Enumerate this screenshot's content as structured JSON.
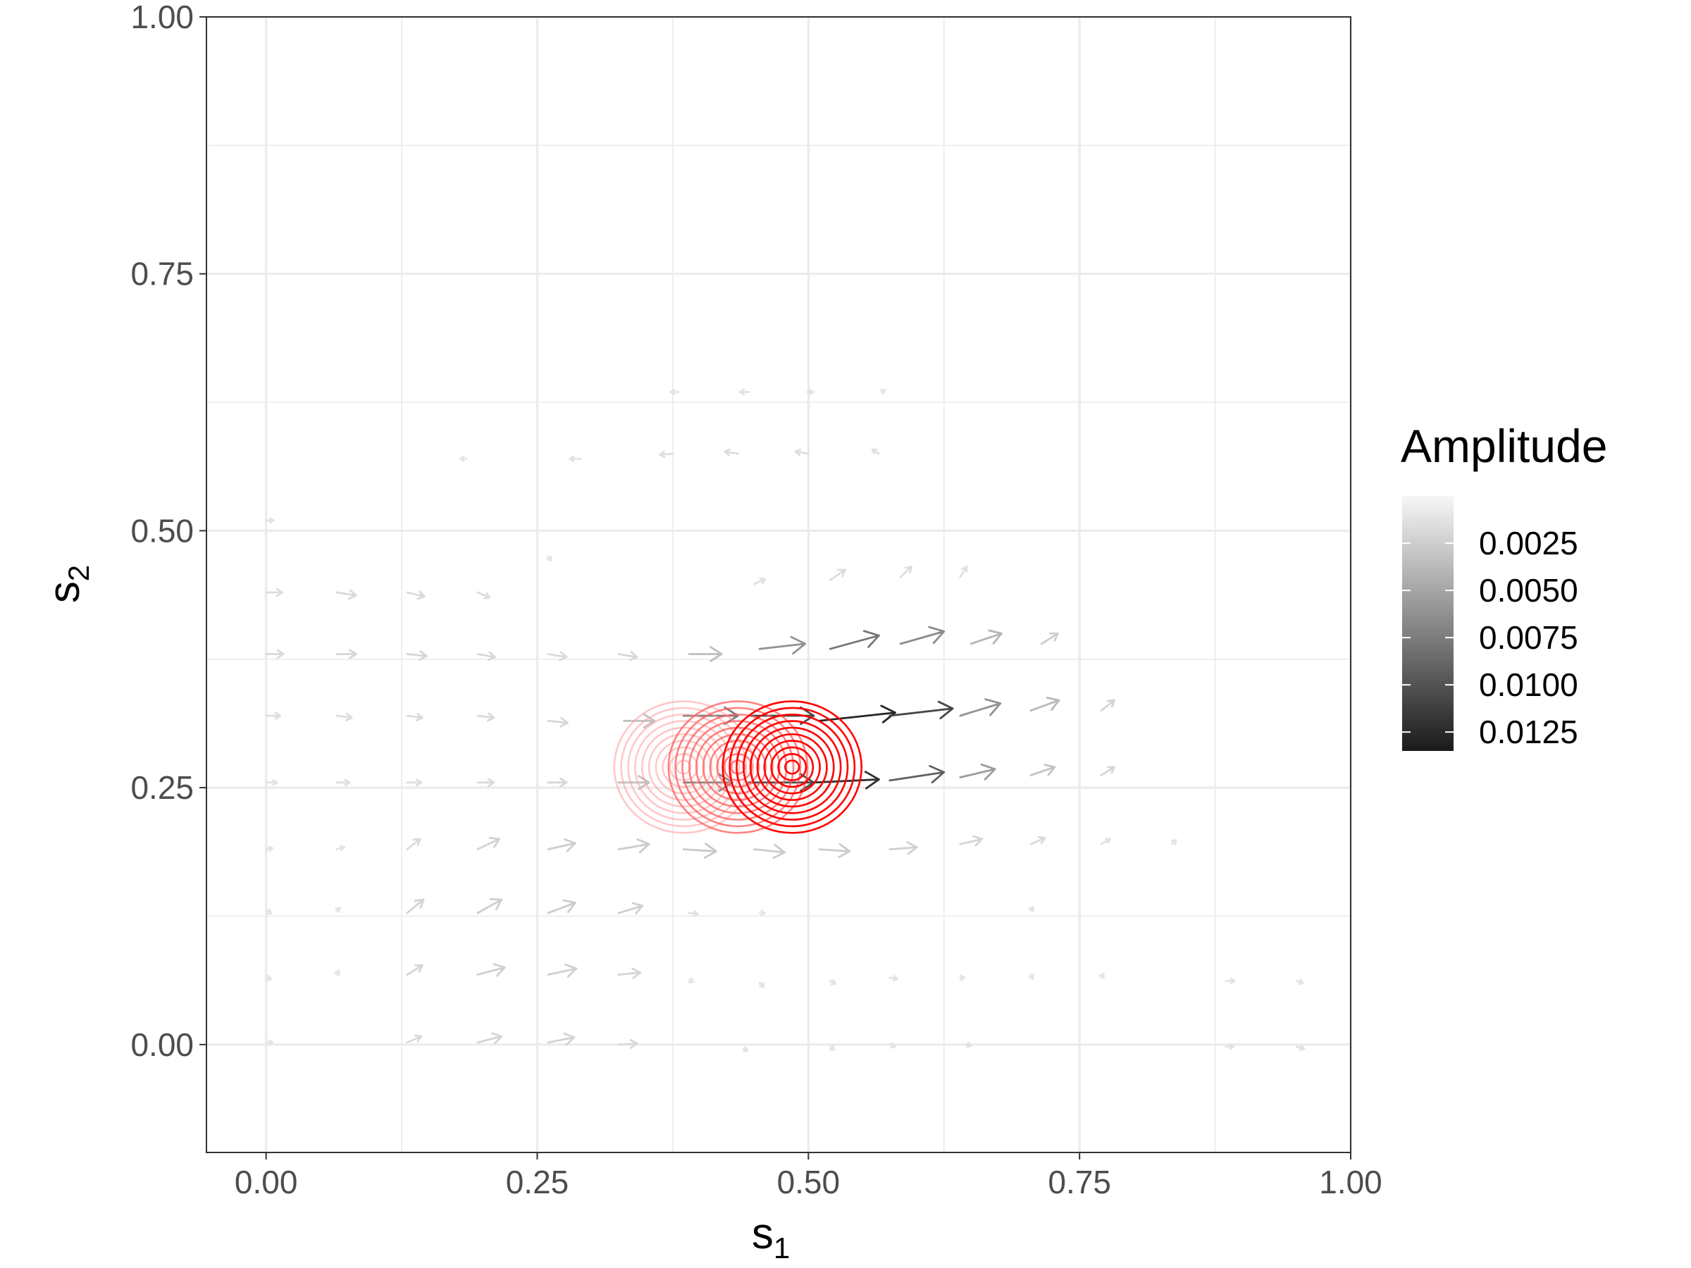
{
  "chart_data": {
    "type": "vector-field-contour",
    "xlabel": "s",
    "xlabel_subscript": "1",
    "ylabel": "s",
    "ylabel_subscript": "2",
    "xlim": [
      -0.055,
      1.0
    ],
    "ylim": [
      -0.105,
      1.0
    ],
    "x_ticks": [
      0.0,
      0.25,
      0.5,
      0.75,
      1.0
    ],
    "x_tick_labels": [
      "0.00",
      "0.25",
      "0.50",
      "0.75",
      "1.00"
    ],
    "y_ticks": [
      0.0,
      0.25,
      0.5,
      0.75,
      1.0
    ],
    "y_tick_labels": [
      "0.00",
      "0.25",
      "0.50",
      "0.75",
      "1.00"
    ],
    "grid": true,
    "legend": {
      "title": "Amplitude",
      "placement": "right",
      "colorbar_range": [
        0.0,
        0.0135
      ],
      "breaks": [
        0.0025,
        0.005,
        0.0075,
        0.01,
        0.0125
      ],
      "labels": [
        "0.0025",
        "0.0050",
        "0.0075",
        "0.0100",
        "0.0125"
      ],
      "color_low": "#f7f7f7",
      "color_high": "#1a1a1a"
    },
    "contours": [
      {
        "center": [
          0.385,
          0.27
        ],
        "radius": 0.064,
        "levels": 10,
        "color": "#ff9c9c",
        "opacity": 0.55
      },
      {
        "center": [
          0.435,
          0.27
        ],
        "radius": 0.064,
        "levels": 10,
        "color": "#ff5a5a",
        "opacity": 0.75
      },
      {
        "center": [
          0.485,
          0.27
        ],
        "radius": 0.064,
        "levels": 10,
        "color": "#ff0000",
        "opacity": 1.0
      }
    ],
    "vectors": [
      {
        "x": 0.0,
        "y": 0.44,
        "dx": 0.015,
        "dy": 0.0,
        "amp": 0.0015
      },
      {
        "x": 0.065,
        "y": 0.44,
        "dx": 0.018,
        "dy": -0.003,
        "amp": 0.0018
      },
      {
        "x": 0.13,
        "y": 0.44,
        "dx": 0.016,
        "dy": -0.004,
        "amp": 0.0018
      },
      {
        "x": 0.195,
        "y": 0.44,
        "dx": 0.011,
        "dy": -0.005,
        "amp": 0.0016
      },
      {
        "x": 0.0,
        "y": 0.38,
        "dx": 0.016,
        "dy": 0.0,
        "amp": 0.0018
      },
      {
        "x": 0.065,
        "y": 0.38,
        "dx": 0.018,
        "dy": 0.0,
        "amp": 0.002
      },
      {
        "x": 0.13,
        "y": 0.38,
        "dx": 0.018,
        "dy": -0.002,
        "amp": 0.002
      },
      {
        "x": 0.195,
        "y": 0.38,
        "dx": 0.016,
        "dy": -0.003,
        "amp": 0.0019
      },
      {
        "x": 0.26,
        "y": 0.38,
        "dx": 0.017,
        "dy": -0.003,
        "amp": 0.0018
      },
      {
        "x": 0.325,
        "y": 0.38,
        "dx": 0.017,
        "dy": -0.003,
        "amp": 0.0019
      },
      {
        "x": 0.39,
        "y": 0.38,
        "dx": 0.03,
        "dy": 0.0,
        "amp": 0.0035
      },
      {
        "x": 0.455,
        "y": 0.385,
        "dx": 0.042,
        "dy": 0.005,
        "amp": 0.0062
      },
      {
        "x": 0.52,
        "y": 0.385,
        "dx": 0.045,
        "dy": 0.013,
        "amp": 0.0078
      },
      {
        "x": 0.585,
        "y": 0.39,
        "dx": 0.04,
        "dy": 0.012,
        "amp": 0.0066
      },
      {
        "x": 0.65,
        "y": 0.39,
        "dx": 0.028,
        "dy": 0.01,
        "amp": 0.004
      },
      {
        "x": 0.715,
        "y": 0.39,
        "dx": 0.015,
        "dy": 0.01,
        "amp": 0.0025
      },
      {
        "x": 0.0,
        "y": 0.32,
        "dx": 0.013,
        "dy": 0.0,
        "amp": 0.0015
      },
      {
        "x": 0.065,
        "y": 0.32,
        "dx": 0.014,
        "dy": -0.002,
        "amp": 0.0016
      },
      {
        "x": 0.13,
        "y": 0.32,
        "dx": 0.014,
        "dy": -0.002,
        "amp": 0.0017
      },
      {
        "x": 0.195,
        "y": 0.32,
        "dx": 0.015,
        "dy": -0.002,
        "amp": 0.0019
      },
      {
        "x": 0.26,
        "y": 0.315,
        "dx": 0.018,
        "dy": -0.002,
        "amp": 0.002
      },
      {
        "x": 0.33,
        "y": 0.315,
        "dx": 0.028,
        "dy": 0.0,
        "amp": 0.0033
      },
      {
        "x": 0.385,
        "y": 0.32,
        "dx": 0.05,
        "dy": 0.0,
        "amp": 0.0075
      },
      {
        "x": 0.445,
        "y": 0.32,
        "dx": 0.06,
        "dy": 0.0,
        "amp": 0.0105
      },
      {
        "x": 0.51,
        "y": 0.315,
        "dx": 0.07,
        "dy": 0.008,
        "amp": 0.0128
      },
      {
        "x": 0.575,
        "y": 0.32,
        "dx": 0.058,
        "dy": 0.007,
        "amp": 0.0108
      },
      {
        "x": 0.64,
        "y": 0.32,
        "dx": 0.037,
        "dy": 0.012,
        "amp": 0.0062
      },
      {
        "x": 0.705,
        "y": 0.325,
        "dx": 0.026,
        "dy": 0.01,
        "amp": 0.0037
      },
      {
        "x": 0.77,
        "y": 0.325,
        "dx": 0.012,
        "dy": 0.01,
        "amp": 0.0022
      },
      {
        "x": 0.0,
        "y": 0.255,
        "dx": 0.01,
        "dy": 0.0,
        "amp": 0.0013
      },
      {
        "x": 0.065,
        "y": 0.255,
        "dx": 0.012,
        "dy": 0.0,
        "amp": 0.0014
      },
      {
        "x": 0.13,
        "y": 0.255,
        "dx": 0.013,
        "dy": 0.0,
        "amp": 0.0015
      },
      {
        "x": 0.195,
        "y": 0.255,
        "dx": 0.015,
        "dy": 0.0,
        "amp": 0.0017
      },
      {
        "x": 0.26,
        "y": 0.255,
        "dx": 0.017,
        "dy": 0.0,
        "amp": 0.0019
      },
      {
        "x": 0.325,
        "y": 0.255,
        "dx": 0.028,
        "dy": 0.0,
        "amp": 0.0032
      },
      {
        "x": 0.385,
        "y": 0.255,
        "dx": 0.045,
        "dy": 0.0,
        "amp": 0.0068
      },
      {
        "x": 0.445,
        "y": 0.255,
        "dx": 0.06,
        "dy": 0.0,
        "amp": 0.0103
      },
      {
        "x": 0.505,
        "y": 0.255,
        "dx": 0.06,
        "dy": 0.003,
        "amp": 0.0121
      },
      {
        "x": 0.575,
        "y": 0.257,
        "dx": 0.05,
        "dy": 0.008,
        "amp": 0.0092
      },
      {
        "x": 0.64,
        "y": 0.26,
        "dx": 0.032,
        "dy": 0.008,
        "amp": 0.0055
      },
      {
        "x": 0.705,
        "y": 0.262,
        "dx": 0.022,
        "dy": 0.008,
        "amp": 0.0032
      },
      {
        "x": 0.77,
        "y": 0.262,
        "dx": 0.012,
        "dy": 0.008,
        "amp": 0.0021
      },
      {
        "x": 0.0,
        "y": 0.19,
        "dx": 0.006,
        "dy": 0.001,
        "amp": 0.0011
      },
      {
        "x": 0.065,
        "y": 0.19,
        "dx": 0.007,
        "dy": 0.002,
        "amp": 0.0012
      },
      {
        "x": 0.13,
        "y": 0.19,
        "dx": 0.012,
        "dy": 0.01,
        "amp": 0.0017
      },
      {
        "x": 0.195,
        "y": 0.19,
        "dx": 0.02,
        "dy": 0.01,
        "amp": 0.0022
      },
      {
        "x": 0.26,
        "y": 0.19,
        "dx": 0.025,
        "dy": 0.006,
        "amp": 0.0025
      },
      {
        "x": 0.325,
        "y": 0.19,
        "dx": 0.028,
        "dy": 0.005,
        "amp": 0.0027
      },
      {
        "x": 0.385,
        "y": 0.19,
        "dx": 0.03,
        "dy": -0.002,
        "amp": 0.0028
      },
      {
        "x": 0.45,
        "y": 0.19,
        "dx": 0.028,
        "dy": -0.003,
        "amp": 0.0027
      },
      {
        "x": 0.51,
        "y": 0.19,
        "dx": 0.028,
        "dy": -0.002,
        "amp": 0.0026
      },
      {
        "x": 0.575,
        "y": 0.19,
        "dx": 0.025,
        "dy": 0.002,
        "amp": 0.0024
      },
      {
        "x": 0.64,
        "y": 0.195,
        "dx": 0.02,
        "dy": 0.005,
        "amp": 0.0021
      },
      {
        "x": 0.705,
        "y": 0.195,
        "dx": 0.013,
        "dy": 0.006,
        "amp": 0.0018
      },
      {
        "x": 0.77,
        "y": 0.195,
        "dx": 0.008,
        "dy": 0.005,
        "amp": 0.0014
      },
      {
        "x": 0.835,
        "y": 0.195,
        "dx": 0.004,
        "dy": 0.004,
        "amp": 0.0012
      },
      {
        "x": 0.0,
        "y": 0.13,
        "dx": 0.005,
        "dy": -0.002,
        "amp": 0.0012
      },
      {
        "x": 0.065,
        "y": 0.13,
        "dx": 0.003,
        "dy": 0.003,
        "amp": 0.0011
      },
      {
        "x": 0.13,
        "y": 0.128,
        "dx": 0.015,
        "dy": 0.013,
        "amp": 0.0022
      },
      {
        "x": 0.195,
        "y": 0.128,
        "dx": 0.022,
        "dy": 0.013,
        "amp": 0.0025
      },
      {
        "x": 0.26,
        "y": 0.128,
        "dx": 0.025,
        "dy": 0.01,
        "amp": 0.0026
      },
      {
        "x": 0.325,
        "y": 0.128,
        "dx": 0.022,
        "dy": 0.007,
        "amp": 0.0024
      },
      {
        "x": 0.39,
        "y": 0.128,
        "dx": 0.008,
        "dy": -0.001,
        "amp": 0.0013
      },
      {
        "x": 0.455,
        "y": 0.128,
        "dx": 0.005,
        "dy": 0.0,
        "amp": 0.0011
      },
      {
        "x": 0.705,
        "y": 0.13,
        "dx": 0.002,
        "dy": 0.004,
        "amp": 0.0012
      },
      {
        "x": 0.0,
        "y": 0.065,
        "dx": 0.005,
        "dy": -0.001,
        "amp": 0.0011
      },
      {
        "x": 0.065,
        "y": 0.068,
        "dx": 0.002,
        "dy": 0.004,
        "amp": 0.0011
      },
      {
        "x": 0.13,
        "y": 0.068,
        "dx": 0.014,
        "dy": 0.009,
        "amp": 0.002
      },
      {
        "x": 0.195,
        "y": 0.068,
        "dx": 0.025,
        "dy": 0.007,
        "amp": 0.0024
      },
      {
        "x": 0.26,
        "y": 0.068,
        "dx": 0.026,
        "dy": 0.006,
        "amp": 0.0024
      },
      {
        "x": 0.325,
        "y": 0.068,
        "dx": 0.02,
        "dy": 0.002,
        "amp": 0.0021
      },
      {
        "x": 0.39,
        "y": 0.063,
        "dx": 0.004,
        "dy": -0.002,
        "amp": 0.0011
      },
      {
        "x": 0.455,
        "y": 0.06,
        "dx": 0.004,
        "dy": -0.004,
        "amp": 0.0012
      },
      {
        "x": 0.52,
        "y": 0.062,
        "dx": 0.005,
        "dy": -0.003,
        "amp": 0.0012
      },
      {
        "x": 0.575,
        "y": 0.065,
        "dx": 0.007,
        "dy": -0.001,
        "amp": 0.0013
      },
      {
        "x": 0.64,
        "y": 0.065,
        "dx": 0.004,
        "dy": 0.0,
        "amp": 0.0012
      },
      {
        "x": 0.705,
        "y": 0.068,
        "dx": 0.002,
        "dy": -0.004,
        "amp": 0.0011
      },
      {
        "x": 0.77,
        "y": 0.065,
        "dx": 0.002,
        "dy": 0.004,
        "amp": 0.0011
      },
      {
        "x": 0.885,
        "y": 0.062,
        "dx": 0.008,
        "dy": 0.0,
        "amp": 0.0012
      },
      {
        "x": 0.95,
        "y": 0.062,
        "dx": 0.006,
        "dy": -0.002,
        "amp": 0.0012
      },
      {
        "x": 0.0,
        "y": 0.002,
        "dx": 0.006,
        "dy": 0.0,
        "amp": 0.0011
      },
      {
        "x": 0.13,
        "y": 0.002,
        "dx": 0.013,
        "dy": 0.006,
        "amp": 0.0018
      },
      {
        "x": 0.195,
        "y": 0.002,
        "dx": 0.022,
        "dy": 0.006,
        "amp": 0.0021
      },
      {
        "x": 0.26,
        "y": 0.002,
        "dx": 0.024,
        "dy": 0.005,
        "amp": 0.0022
      },
      {
        "x": 0.325,
        "y": 0.0,
        "dx": 0.017,
        "dy": 0.001,
        "amp": 0.0018
      },
      {
        "x": 0.44,
        "y": -0.004,
        "dx": 0.004,
        "dy": -0.002,
        "amp": 0.0011
      },
      {
        "x": 0.52,
        "y": -0.002,
        "dx": 0.004,
        "dy": -0.003,
        "amp": 0.0012
      },
      {
        "x": 0.575,
        "y": 0.0,
        "dx": 0.005,
        "dy": -0.002,
        "amp": 0.0012
      },
      {
        "x": 0.645,
        "y": 0.0,
        "dx": 0.005,
        "dy": -0.001,
        "amp": 0.0012
      },
      {
        "x": 0.885,
        "y": -0.002,
        "dx": 0.007,
        "dy": 0.0,
        "amp": 0.0012
      },
      {
        "x": 0.95,
        "y": -0.002,
        "dx": 0.007,
        "dy": -0.002,
        "amp": 0.0013
      },
      {
        "x": 0.0,
        "y": 0.51,
        "dx": 0.007,
        "dy": 0.0,
        "amp": 0.0012
      },
      {
        "x": 0.26,
        "y": 0.475,
        "dx": 0.003,
        "dy": -0.004,
        "amp": 0.0011
      },
      {
        "x": 0.45,
        "y": 0.448,
        "dx": 0.01,
        "dy": 0.005,
        "amp": 0.0014
      },
      {
        "x": 0.52,
        "y": 0.452,
        "dx": 0.014,
        "dy": 0.01,
        "amp": 0.0016
      },
      {
        "x": 0.585,
        "y": 0.455,
        "dx": 0.01,
        "dy": 0.01,
        "amp": 0.0016
      },
      {
        "x": 0.64,
        "y": 0.455,
        "dx": 0.006,
        "dy": 0.01,
        "amp": 0.0014
      },
      {
        "x": 0.185,
        "y": 0.57,
        "dx": -0.006,
        "dy": 0.0,
        "amp": 0.0011
      },
      {
        "x": 0.29,
        "y": 0.57,
        "dx": -0.01,
        "dy": 0.0,
        "amp": 0.0013
      },
      {
        "x": 0.375,
        "y": 0.575,
        "dx": -0.012,
        "dy": -0.001,
        "amp": 0.0015
      },
      {
        "x": 0.435,
        "y": 0.575,
        "dx": -0.012,
        "dy": 0.002,
        "amp": 0.0016
      },
      {
        "x": 0.5,
        "y": 0.575,
        "dx": -0.012,
        "dy": 0.002,
        "amp": 0.0016
      },
      {
        "x": 0.565,
        "y": 0.575,
        "dx": -0.006,
        "dy": 0.004,
        "amp": 0.0014
      },
      {
        "x": 0.38,
        "y": 0.635,
        "dx": -0.007,
        "dy": 0.0,
        "amp": 0.0012
      },
      {
        "x": 0.445,
        "y": 0.635,
        "dx": -0.008,
        "dy": 0.0,
        "amp": 0.0013
      },
      {
        "x": 0.505,
        "y": 0.635,
        "dx": -0.006,
        "dy": 0.0,
        "amp": 0.0012
      },
      {
        "x": 0.57,
        "y": 0.635,
        "dx": -0.003,
        "dy": 0.002,
        "amp": 0.0011
      }
    ]
  }
}
